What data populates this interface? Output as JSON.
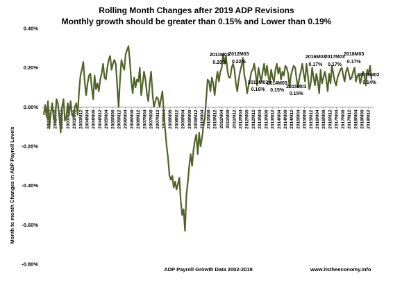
{
  "chart_data": {
    "type": "line",
    "title": "Rolling Month Changes after 2019 ADP Revisions",
    "subtitle": "Monthly growth should be greater than 0.15% and Lower than 0.19%",
    "xlabel": "ADP Payroll Growth Data 2002-2019",
    "ylabel": "Month to month Changes in ADP Payroll Levels",
    "source": "www.itstheeconomy.info",
    "ylim": [
      -0.8,
      0.4
    ],
    "yticks": [
      "0.40%",
      "0.20%",
      "0.00%",
      "-0.20%",
      "-0.40%",
      "-0.60%",
      "-0.80%"
    ],
    "grid": false,
    "legend": "none",
    "line_color": "#4f6228",
    "x_tick_labels": [
      "2002M04",
      "2002M08",
      "2002M12",
      "2003M04",
      "2003M08",
      "2003M12",
      "2004M04",
      "2004M08",
      "2004M12",
      "2005M04",
      "2005M08",
      "2005M12",
      "2006M04",
      "2006M08",
      "2006M12",
      "2007M04",
      "2007M08",
      "2007M12",
      "2008M04",
      "2008M08",
      "2008M12",
      "2009M04",
      "2009M08",
      "2009M12",
      "2010M04",
      "2010M08",
      "2010M12",
      "2011M04",
      "2011M08",
      "2011M12",
      "2012M04",
      "2012M08",
      "2012M12",
      "2013M04",
      "2013M08",
      "2013M12",
      "2014M04",
      "2014M08",
      "2014M12",
      "2015M04",
      "2015M08",
      "2015M12",
      "2016M04",
      "2016M08",
      "2016M12",
      "2017M04",
      "2017M08",
      "2017M12",
      "2018M04",
      "2018M08",
      "2018M12"
    ],
    "series": [
      {
        "x_start": "2002M01",
        "x_end": "2019M02",
        "values": [
          -0.04,
          0.01,
          -0.05,
          0.03,
          -0.11,
          -0.03,
          0.02,
          -0.06,
          -0.08,
          0.04,
          0.02,
          -0.05,
          -0.13,
          0.0,
          0.04,
          -0.07,
          -0.05,
          0.02,
          -0.04,
          0.03,
          -0.04,
          -0.05,
          0.0,
          0.02,
          -0.04,
          0.08,
          0.16,
          0.19,
          0.23,
          0.13,
          0.06,
          0.12,
          0.16,
          0.17,
          0.1,
          0.04,
          0.16,
          0.09,
          0.12,
          0.08,
          0.14,
          0.17,
          0.22,
          0.15,
          0.14,
          0.2,
          0.24,
          0.26,
          0.19,
          0.22,
          0.24,
          0.22,
          0.11,
          0.0,
          0.14,
          0.24,
          0.21,
          0.19,
          0.27,
          0.29,
          0.31,
          0.23,
          0.13,
          0.07,
          0.15,
          0.1,
          0.14,
          0.13,
          0.2,
          0.06,
          0.12,
          0.18,
          0.14,
          0.07,
          0.03,
          0.12,
          0.18,
          0.07,
          0.0,
          0.03,
          0.05,
          0.04,
          0.0,
          0.04,
          0.08,
          -0.03,
          -0.12,
          -0.2,
          -0.26,
          -0.35,
          -0.37,
          -0.35,
          -0.41,
          -0.38,
          -0.42,
          -0.39,
          -0.36,
          -0.48,
          -0.55,
          -0.52,
          -0.63,
          -0.45,
          -0.38,
          -0.3,
          -0.24,
          -0.3,
          -0.22,
          -0.17,
          -0.14,
          -0.24,
          -0.13,
          -0.2,
          -0.16,
          -0.1,
          -0.06,
          0.04,
          0.14,
          0.13,
          0.08,
          0.15,
          0.12,
          0.06,
          0.13,
          0.18,
          0.13,
          0.18,
          0.2,
          0.27,
          0.22,
          0.26,
          0.19,
          0.15,
          0.15,
          0.2,
          0.22,
          0.19,
          0.12,
          0.08,
          0.14,
          0.18,
          0.21,
          0.25,
          0.16,
          0.13,
          0.07,
          0.11,
          0.14,
          0.18,
          0.19,
          0.22,
          0.17,
          0.11,
          0.2,
          0.16,
          0.13,
          0.18,
          0.22,
          0.16,
          0.21,
          0.16,
          0.12,
          0.19,
          0.15,
          0.13,
          0.19,
          0.22,
          0.17,
          0.2,
          0.14,
          0.18,
          0.16,
          0.21,
          0.2,
          0.17,
          0.1,
          0.16,
          0.19,
          0.21,
          0.2,
          0.14,
          0.1,
          0.15,
          0.18,
          0.22,
          0.17,
          0.13,
          0.22,
          0.16,
          0.09,
          0.12,
          0.2,
          0.15,
          0.11,
          0.17,
          0.13,
          0.07,
          0.19,
          0.12,
          0.15,
          0.18,
          0.14,
          0.08,
          0.17,
          0.12,
          0.21,
          0.17,
          0.13,
          0.11,
          0.15,
          0.17,
          0.19,
          0.2,
          0.16,
          0.13,
          0.18,
          0.2,
          0.17,
          0.14,
          0.15,
          0.18,
          0.2,
          0.13,
          0.16,
          0.17,
          0.12,
          0.15,
          0.18,
          0.16,
          0.11,
          0.19,
          0.17,
          0.21,
          0.14
        ]
      }
    ],
    "annotations": [
      {
        "label": "2011M03",
        "value": "0.20%",
        "x": "2011M03"
      },
      {
        "label": "2012M03",
        "value": "0.22%",
        "x": "2012M03"
      },
      {
        "label": "2013M03",
        "value": "0.16%",
        "x": "2013M03"
      },
      {
        "label": "2014M03",
        "value": "0.15%",
        "x": "2014M03"
      },
      {
        "label": "2015M03",
        "value": "0.15%",
        "x": "2015M03"
      },
      {
        "label": "2016M03",
        "value": "0.17%",
        "x": "2016M03"
      },
      {
        "label": "2017M03",
        "value": "0.17%",
        "x": "2017M03"
      },
      {
        "label": "2018M03",
        "value": "0.17%",
        "x": "2018M03"
      },
      {
        "label": "2019M02",
        "value": "0.14%",
        "x": "2019M02"
      }
    ]
  }
}
